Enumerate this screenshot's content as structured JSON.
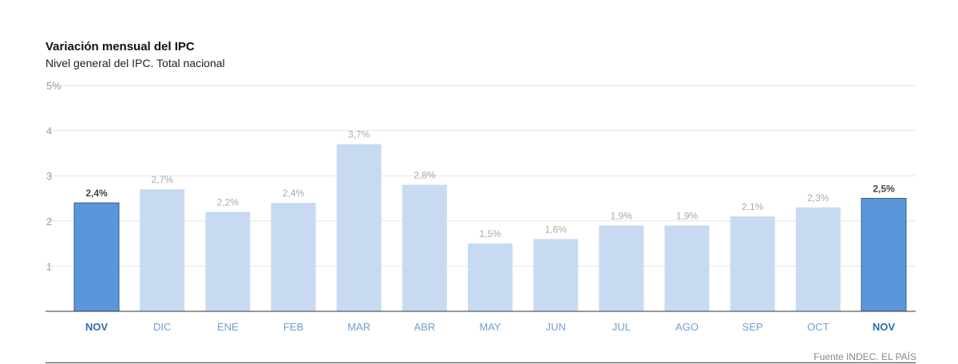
{
  "chart_data": {
    "type": "bar",
    "title": "Variación mensual del IPC",
    "subtitle": "Nivel general del IPC. Total nacional",
    "categories": [
      "NOV",
      "DIC",
      "ENE",
      "FEB",
      "MAR",
      "ABR",
      "MAY",
      "JUN",
      "JUL",
      "AGO",
      "SEP",
      "OCT",
      "NOV"
    ],
    "values": [
      2.4,
      2.7,
      2.2,
      2.4,
      3.7,
      2.8,
      1.5,
      1.6,
      1.9,
      1.9,
      2.1,
      2.3,
      2.5
    ],
    "value_labels": [
      "2,4%",
      "2,7%",
      "2,2%",
      "2,4%",
      "3,7%",
      "2,8%",
      "1,5%",
      "1,6%",
      "1,9%",
      "1,9%",
      "2,1%",
      "2,3%",
      "2,5%"
    ],
    "highlighted": [
      true,
      false,
      false,
      false,
      false,
      false,
      false,
      false,
      false,
      false,
      false,
      false,
      true
    ],
    "ylim": [
      0,
      5
    ],
    "yticks": [
      1,
      2,
      3,
      4,
      5
    ],
    "ytick_labels": [
      "1",
      "2",
      "3",
      "4",
      "5%"
    ],
    "grid": true,
    "xlabel": "",
    "ylabel": "",
    "source": "Fuente INDEC. EL PAÍS",
    "colors": {
      "highlight_bar": "#5b95da",
      "highlight_bar_stroke": "#2f5f93",
      "normal_bar": "#c7daf2",
      "grid": "#e6e6e6",
      "axis": "#333333"
    }
  }
}
